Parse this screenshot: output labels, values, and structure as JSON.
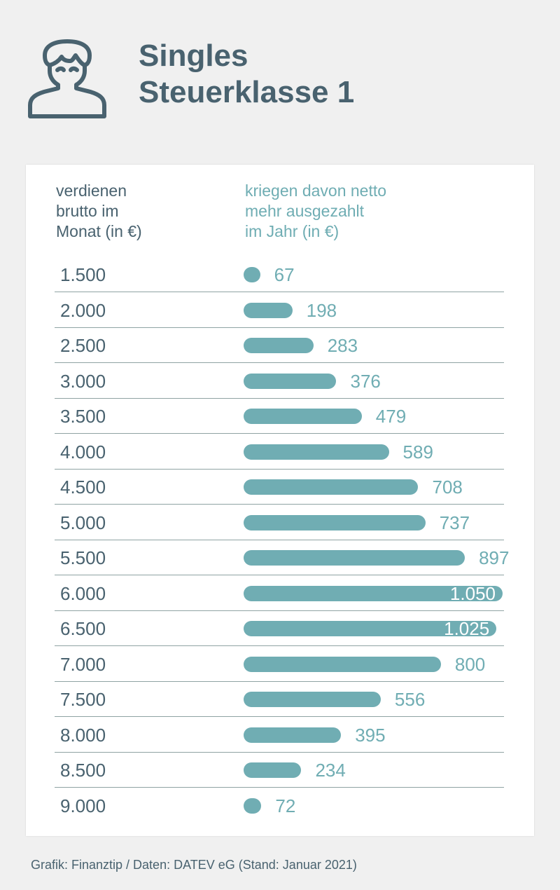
{
  "header": {
    "title_line1": "Singles",
    "title_line2": "Steuerklasse 1",
    "icon": "person-icon"
  },
  "colors": {
    "bar": "#70adb3",
    "text": "#49626f"
  },
  "chart_data": {
    "type": "bar",
    "orientation": "horizontal",
    "xlabel": "verdienen\nbrutto im\nMonat (in €)",
    "ylabel": "kriegen davon netto\nmehr ausgezahlt\nim Jahr (in €)",
    "categories": [
      "1.500",
      "2.000",
      "2.500",
      "3.000",
      "3.500",
      "4.000",
      "4.500",
      "5.000",
      "5.500",
      "6.000",
      "6.500",
      "7.000",
      "7.500",
      "8.000",
      "8.500",
      "9.000"
    ],
    "values": [
      67,
      198,
      283,
      376,
      479,
      589,
      708,
      737,
      897,
      1050,
      1025,
      800,
      556,
      395,
      234,
      72
    ],
    "value_labels": [
      "67",
      "198",
      "283",
      "376",
      "479",
      "589",
      "708",
      "737",
      "897",
      "1.050",
      "1.025",
      "800",
      "556",
      "395",
      "234",
      "72"
    ],
    "xlim": [
      0,
      1050
    ]
  },
  "footer": "Grafik: Finanztip / Daten: DATEV eG (Stand: Januar 2021)"
}
